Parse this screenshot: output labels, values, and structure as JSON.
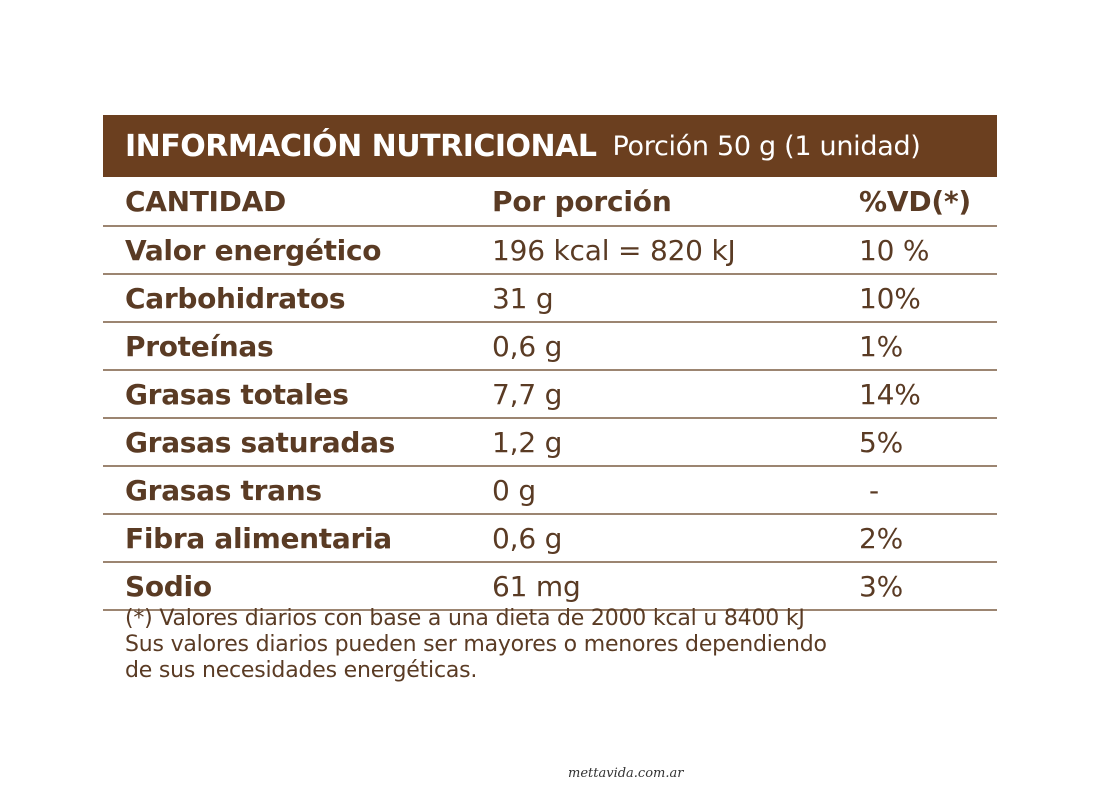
{
  "header": {
    "title": "INFORMACIÓN NUTRICIONAL",
    "portion": "Porción 50 g (1 unidad)"
  },
  "columns": [
    "CANTIDAD",
    "Por porción",
    "%VD(*)"
  ],
  "rows": [
    {
      "name": "Valor energético",
      "amount": "196 kcal = 820 kJ",
      "dv": "10 %"
    },
    {
      "name": "Carbohidratos",
      "amount": "31 g",
      "dv": "10%"
    },
    {
      "name": "Proteínas",
      "amount": "0,6 g",
      "dv": "1%"
    },
    {
      "name": "Grasas totales",
      "amount": "7,7 g",
      "dv": "14%"
    },
    {
      "name": "Grasas saturadas",
      "amount": "1,2 g",
      "dv": "5%"
    },
    {
      "name": "Grasas trans",
      "amount": "0 g",
      "dv": "-"
    },
    {
      "name": "Fibra alimentaria",
      "amount": "0,6 g",
      "dv": "2%"
    },
    {
      "name": "Sodio",
      "amount": "61 mg",
      "dv": "3%"
    }
  ],
  "footnote": [
    "(*) Valores diarios con base a una dieta de 2000 kcal u 8400 kJ",
    "Sus valores diarios pueden ser mayores o menores dependiendo",
    "de sus necesidades energéticas."
  ],
  "watermark": "mettavida.com.ar",
  "colors": {
    "header_bg": "#6b3f1f",
    "text": "#5a3b24",
    "rule": "#9c8571"
  }
}
